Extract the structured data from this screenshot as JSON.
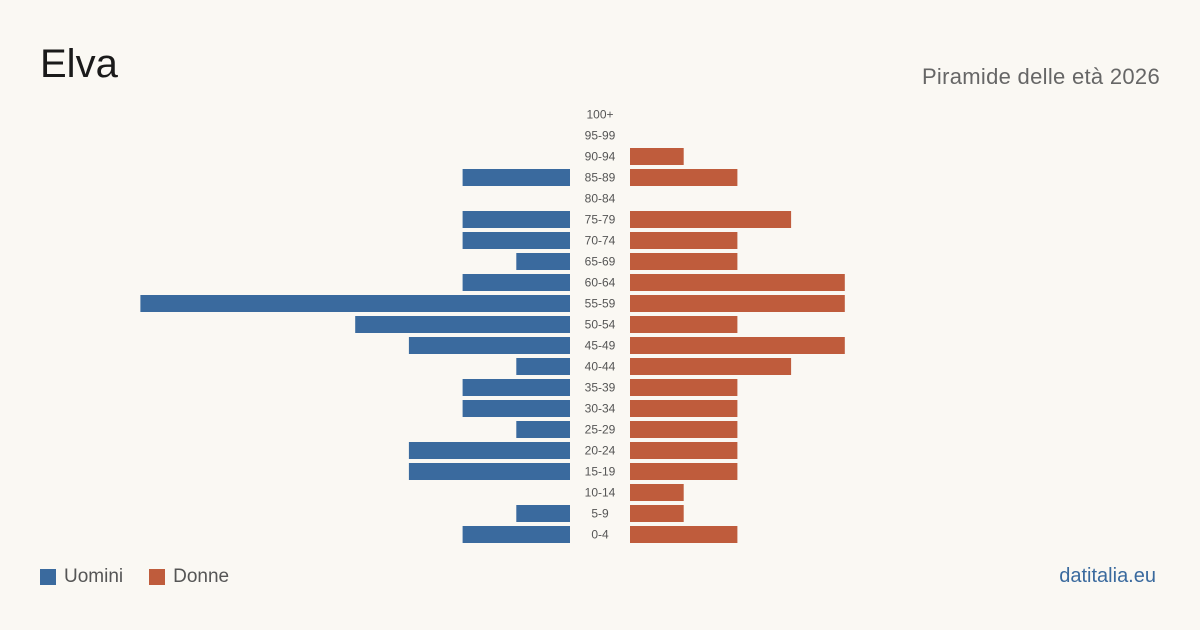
{
  "title": "Elva",
  "subtitle": "Piramide delle età 2026",
  "brand": "datitalia.eu",
  "colors": {
    "men": "#3a6a9e",
    "women": "#bf5c3c",
    "label": "#555555"
  },
  "chart_data": {
    "type": "bar",
    "orientation": "horizontal-pyramid",
    "categories": [
      "100+",
      "95-99",
      "90-94",
      "85-89",
      "80-84",
      "75-79",
      "70-74",
      "65-69",
      "60-64",
      "55-59",
      "50-54",
      "45-49",
      "40-44",
      "35-39",
      "30-34",
      "25-29",
      "20-24",
      "15-19",
      "10-14",
      "5-9",
      "0-4"
    ],
    "series": [
      {
        "name": "Uomini",
        "values": [
          0,
          0,
          0,
          2,
          0,
          2,
          2,
          1,
          2,
          8,
          4,
          3,
          1,
          2,
          2,
          1,
          3,
          3,
          0,
          1,
          2
        ]
      },
      {
        "name": "Donne",
        "values": [
          0,
          0,
          1,
          2,
          0,
          3,
          2,
          2,
          4,
          4,
          2,
          4,
          3,
          2,
          2,
          2,
          2,
          2,
          1,
          1,
          2
        ]
      }
    ],
    "legend": "bottom-left"
  }
}
